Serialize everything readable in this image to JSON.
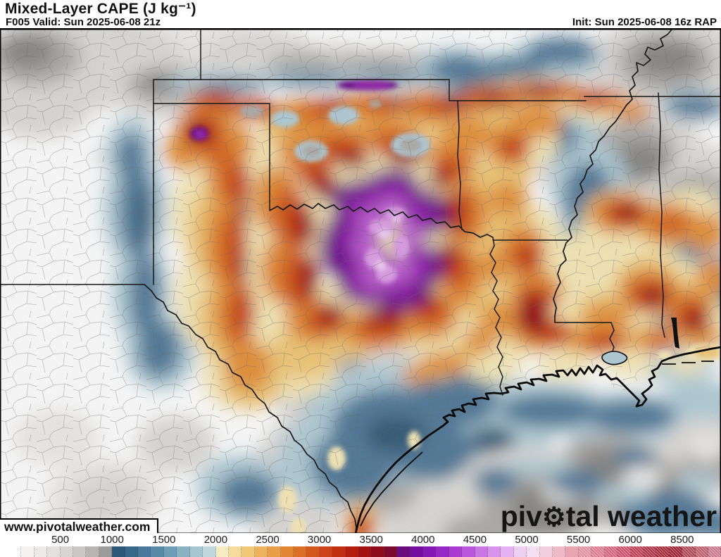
{
  "header": {
    "title": "Mixed-Layer CAPE (J kg⁻¹)",
    "valid": "F005 Valid: Sun 2025-06-08 21z",
    "init": "Init: Sun 2025-06-08 16z RAP"
  },
  "watermark": {
    "url": "www.pivotalweather.com"
  },
  "logo": {
    "part1": "piv",
    "gear": "⚙",
    "part2": "tal weather"
  },
  "colorbar": {
    "units": "J kg⁻¹",
    "tick_values": [
      500,
      1000,
      1500,
      2000,
      2500,
      3000,
      3500,
      4000,
      4500,
      5000,
      5500,
      6000,
      8500
    ],
    "hatch_from": 44,
    "colors": [
      "#ffffff",
      "#f6f4f2",
      "#edebe9",
      "#e3e1df",
      "#d8d6d4",
      "#cac8c6",
      "#b7b5b3",
      "#9d9b99",
      "#2d5878",
      "#3a688a",
      "#48799a",
      "#5a8aa8",
      "#6f9db5",
      "#88b2c3",
      "#a3c6d1",
      "#c0d9de",
      "#f8ecc2",
      "#f5dc9c",
      "#f1c878",
      "#edb35a",
      "#e89d47",
      "#e28734",
      "#dc6f27",
      "#d4581d",
      "#cb4316",
      "#c02f10",
      "#b21d0f",
      "#a21010",
      "#8f0c1d",
      "#7b0a2e",
      "#6a0d7e",
      "#750fa0",
      "#8517b4",
      "#9727c4",
      "#a83bd2",
      "#b957dc",
      "#c876e4",
      "#d794ec",
      "#e4b2f1",
      "#efd0f5",
      "#f5e0f1",
      "#f2cfdd",
      "#eebac7",
      "#e9a4b2",
      "#e28fa0",
      "#da798e",
      "#d2637b",
      "#c84e68",
      "#ba3d55",
      "#ad3146",
      "#a2283a",
      "#982032",
      "#ad4556",
      "#bb5d6b",
      "#c97889"
    ]
  }
}
